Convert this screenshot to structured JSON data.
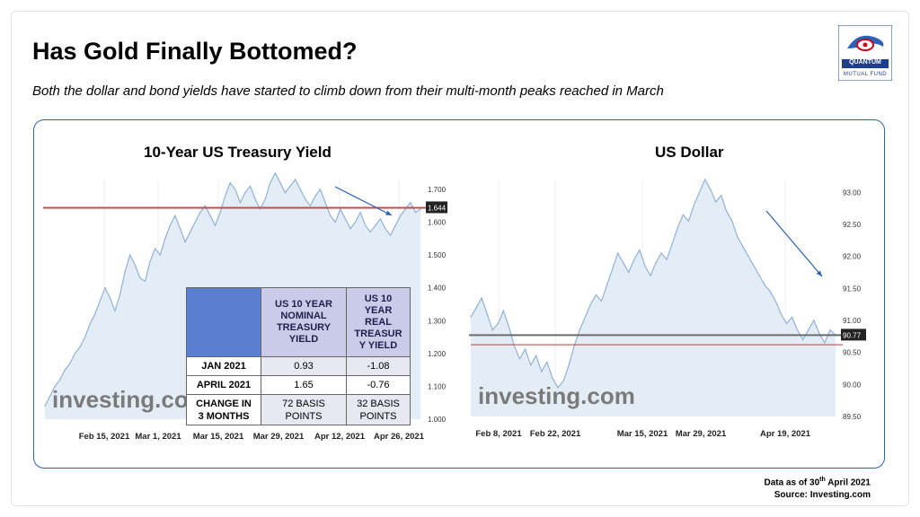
{
  "title": "Has Gold Finally Bottomed?",
  "subtitle": "Both the dollar and bond yields have started to climb down from their multi-month peaks reached in March",
  "logo": {
    "name": "QUANTUM",
    "sub": "MUTUAL FUND"
  },
  "footer": {
    "line1_prefix": "Data as of 30",
    "line1_sup": "th",
    "line1_suffix": " April 2021",
    "line2": "Source: Investing.com"
  },
  "colors": {
    "panel_border": "#2a62b8",
    "series_line": "#8fb2da",
    "series_fill": "#e4edf6",
    "ref_red": "#c0504d",
    "ref_gray": "#6b6b6b",
    "arrow": "#2a62b8"
  },
  "chart_data": [
    {
      "type": "line",
      "title": "10-Year US Treasury Yield",
      "x_ticks": [
        "Feb 15, 2021",
        "Mar 1, 2021",
        "Mar 15, 2021",
        "Mar 29, 2021",
        "Apr 12, 2021",
        "Apr 26, 2021"
      ],
      "y_ticks": [
        "1.000",
        "1.100",
        "1.200",
        "1.300",
        "1.400",
        "1.500",
        "1.600",
        "1.700"
      ],
      "ylim": [
        1.0,
        1.73
      ],
      "current_value_label": "1.644",
      "reference_line": 1.644,
      "watermark": "investing.com",
      "values": [
        1.04,
        1.07,
        1.1,
        1.12,
        1.15,
        1.17,
        1.2,
        1.22,
        1.25,
        1.29,
        1.32,
        1.36,
        1.4,
        1.37,
        1.33,
        1.38,
        1.45,
        1.5,
        1.47,
        1.43,
        1.42,
        1.48,
        1.52,
        1.5,
        1.55,
        1.59,
        1.62,
        1.58,
        1.54,
        1.57,
        1.6,
        1.63,
        1.65,
        1.62,
        1.59,
        1.63,
        1.68,
        1.72,
        1.7,
        1.66,
        1.69,
        1.71,
        1.67,
        1.64,
        1.67,
        1.72,
        1.75,
        1.72,
        1.69,
        1.71,
        1.73,
        1.7,
        1.67,
        1.65,
        1.68,
        1.7,
        1.66,
        1.62,
        1.6,
        1.64,
        1.61,
        1.58,
        1.6,
        1.63,
        1.59,
        1.57,
        1.59,
        1.61,
        1.58,
        1.56,
        1.59,
        1.62,
        1.64,
        1.66,
        1.63,
        1.64
      ]
    },
    {
      "type": "line",
      "title": "US Dollar",
      "x_ticks": [
        "Feb 8, 2021",
        "Feb 22, 2021",
        "Mar 15, 2021",
        "Mar 29, 2021",
        "Apr 19, 2021"
      ],
      "y_ticks": [
        "89.50",
        "90.00",
        "90.50",
        "91.00",
        "91.50",
        "92.00",
        "92.50",
        "93.00"
      ],
      "ylim": [
        89.5,
        93.2
      ],
      "current_value_label": "90.77",
      "reference_line": 90.77,
      "red_line": 90.62,
      "watermark": "investing.com",
      "values": [
        91.05,
        91.2,
        91.35,
        91.1,
        90.85,
        90.95,
        91.15,
        90.9,
        90.6,
        90.4,
        90.55,
        90.3,
        90.45,
        90.2,
        90.35,
        90.1,
        89.95,
        90.05,
        90.3,
        90.6,
        90.85,
        91.05,
        91.25,
        91.4,
        91.3,
        91.55,
        91.8,
        92.05,
        91.9,
        91.75,
        91.95,
        92.1,
        91.85,
        91.7,
        91.9,
        92.05,
        91.95,
        92.2,
        92.45,
        92.65,
        92.55,
        92.8,
        93.0,
        93.2,
        93.05,
        92.85,
        92.95,
        92.7,
        92.55,
        92.3,
        92.15,
        92.0,
        91.85,
        91.7,
        91.55,
        91.45,
        91.3,
        91.1,
        90.95,
        91.05,
        90.85,
        90.7,
        90.85,
        91.0,
        90.8,
        90.65,
        90.85,
        90.77
      ]
    }
  ],
  "table": {
    "headers": [
      "",
      "US 10 YEAR NOMINAL TREASURY YIELD",
      "US 10 YEAR REAL TREASURY YIELD"
    ],
    "header_col1_lines": [
      "US 10 YEAR",
      "NOMINAL",
      "TREASURY",
      "YIELD"
    ],
    "header_col2_lines": [
      "US 10",
      "YEAR",
      "REAL",
      "TREASUR",
      "Y YIELD"
    ],
    "rows": [
      {
        "label": "JAN 2021",
        "nominal": "0.93",
        "real": "-1.08"
      },
      {
        "label": "APRIL 2021",
        "nominal": "1.65",
        "real": "-0.76"
      },
      {
        "label_lines": [
          "CHANGE IN",
          "3 MONTHS"
        ],
        "nominal_lines": [
          "72 BASIS",
          "POINTS"
        ],
        "real_lines": [
          "32 BASIS",
          "POINTS"
        ]
      }
    ]
  }
}
